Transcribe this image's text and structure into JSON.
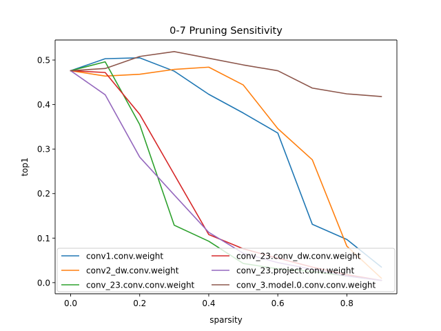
{
  "chart_data": {
    "type": "line",
    "title": "0-7 Pruning Sensitivity",
    "xlabel": "sparsity",
    "ylabel": "top1",
    "xlim": [
      -0.045,
      0.945
    ],
    "ylim": [
      -0.025,
      0.545
    ],
    "xticks": [
      0.0,
      0.2,
      0.4,
      0.6,
      0.8
    ],
    "yticks": [
      0.0,
      0.1,
      0.2,
      0.3,
      0.4,
      0.5
    ],
    "grid": false,
    "legend": "lower-center, 2 columns",
    "x": [
      0.0,
      0.1,
      0.2,
      0.3,
      0.4,
      0.5,
      0.6,
      0.7,
      0.8,
      0.9
    ],
    "series": [
      {
        "name": "conv1.conv.weight",
        "color": "#1f77b4",
        "values": [
          0.476,
          0.503,
          0.505,
          0.475,
          0.423,
          0.381,
          0.336,
          0.131,
          0.097,
          0.035
        ]
      },
      {
        "name": "conv2_dw.conv.weight",
        "color": "#ff7f0e",
        "values": [
          0.476,
          0.464,
          0.468,
          0.479,
          0.484,
          0.444,
          0.346,
          0.276,
          0.082,
          0.01
        ]
      },
      {
        "name": "conv_23.conv.conv.weight",
        "color": "#2ca02c",
        "values": [
          0.476,
          0.496,
          0.355,
          0.129,
          0.093,
          0.043,
          0.031,
          0.025,
          0.015,
          0.005
        ]
      },
      {
        "name": "conv_23.conv_dw.conv.weight",
        "color": "#d62728",
        "values": [
          0.476,
          0.472,
          0.378,
          0.243,
          0.108,
          0.076,
          0.055,
          0.035,
          0.018,
          0.005
        ]
      },
      {
        "name": "conv_23.project.conv.weight",
        "color": "#9467bd",
        "values": [
          0.476,
          0.422,
          0.282,
          0.197,
          0.113,
          0.066,
          0.045,
          0.03,
          0.015,
          0.005
        ]
      },
      {
        "name": "conv_3.model.0.conv.conv.weight",
        "color": "#8c564b",
        "values": [
          0.476,
          0.481,
          0.508,
          0.519,
          0.504,
          0.489,
          0.476,
          0.437,
          0.424,
          0.418
        ]
      }
    ]
  }
}
